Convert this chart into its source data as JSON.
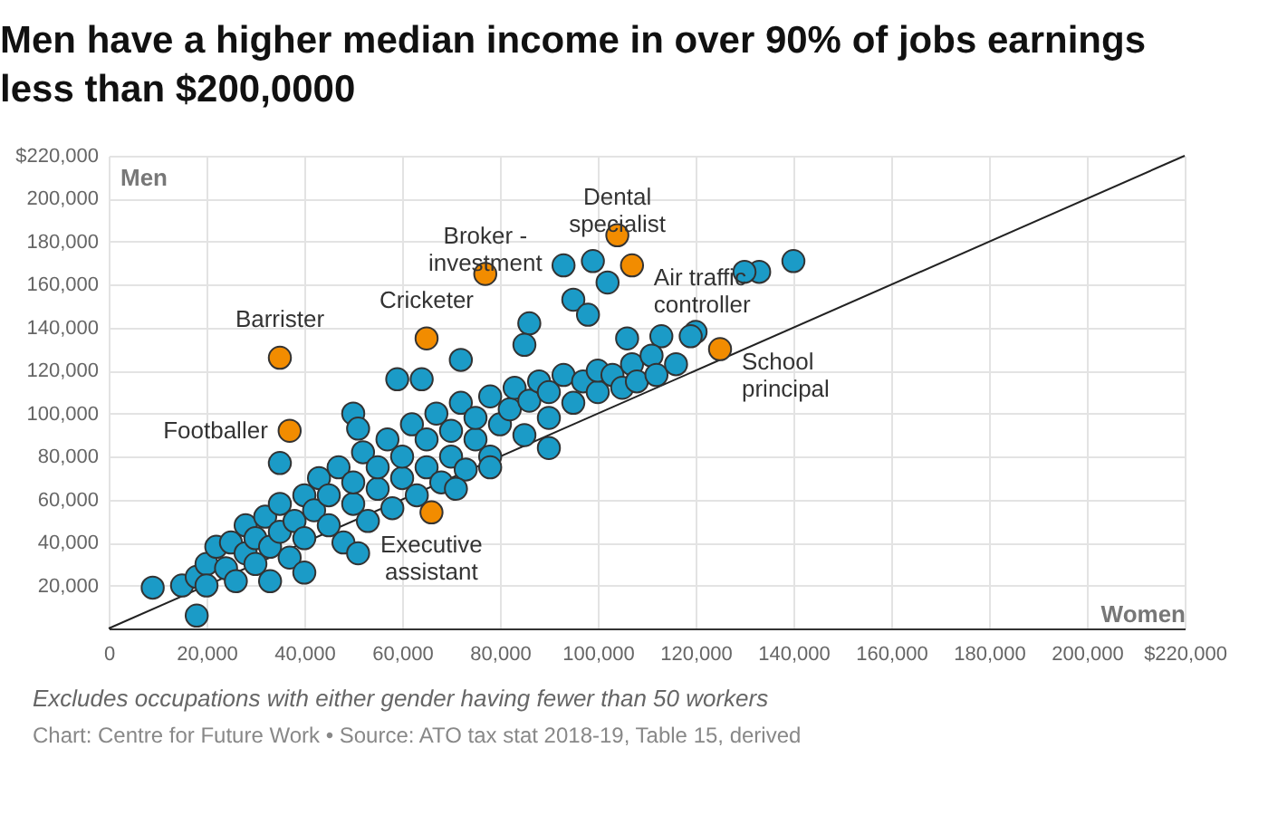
{
  "chart_data": {
    "type": "scatter",
    "title": "Men have a higher median income in over 90% of jobs earnings less than $200,0000",
    "xlabel": "Women",
    "ylabel": "Men",
    "xlim": [
      0,
      220000
    ],
    "ylim": [
      0,
      220000
    ],
    "xticks": [
      0,
      {
        "value": 20000,
        "label": "20,000"
      },
      {
        "value": 40000,
        "label": "40,000"
      },
      {
        "value": 60000,
        "label": "60,000"
      },
      {
        "value": 80000,
        "label": "80,000"
      },
      {
        "value": 100000,
        "label": "100,000"
      },
      {
        "value": 120000,
        "label": "120,000"
      },
      {
        "value": 140000,
        "label": "140,000"
      },
      {
        "value": 160000,
        "label": "160,000"
      },
      {
        "value": 180000,
        "label": "180,000"
      },
      {
        "value": 200000,
        "label": "200,000"
      },
      {
        "value": 220000,
        "label": "$220,000"
      }
    ],
    "yticks": [
      {
        "value": 20000,
        "label": "20,000"
      },
      {
        "value": 40000,
        "label": "40,000"
      },
      {
        "value": 60000,
        "label": "60,000"
      },
      {
        "value": 80000,
        "label": "80,000"
      },
      {
        "value": 100000,
        "label": "100,000"
      },
      {
        "value": 120000,
        "label": "120,000"
      },
      {
        "value": 140000,
        "label": "140,000"
      },
      {
        "value": 160000,
        "label": "160,000"
      },
      {
        "value": 180000,
        "label": "180,000"
      },
      {
        "value": 200000,
        "label": "200,000"
      },
      {
        "value": 220000,
        "label": "$220,000"
      }
    ],
    "grid": true,
    "marker": "circle",
    "series": [
      {
        "type": "line",
        "color": "#222222",
        "marker": "none",
        "x": [
          0,
          220000
        ],
        "values": [
          0,
          220000
        ]
      },
      {
        "type": "scatter",
        "color": "#1b9bc7",
        "x": [
          15000,
          18000,
          20000,
          20000,
          22000,
          24000,
          25000,
          26000,
          28000,
          28000,
          30000,
          30000,
          32000,
          33000,
          35000,
          35000,
          37000,
          38000,
          40000,
          40000,
          42000,
          43000,
          45000,
          45000,
          47000,
          48000,
          50000,
          50000,
          52000,
          53000,
          55000,
          55000,
          57000,
          58000,
          60000,
          60000,
          62000,
          63000,
          65000,
          65000,
          67000,
          68000,
          70000,
          70000,
          72000,
          73000,
          75000,
          75000,
          78000,
          78000,
          80000,
          82000,
          83000,
          85000,
          86000,
          88000,
          90000,
          90000,
          93000,
          95000,
          97000,
          100000,
          100000,
          103000,
          105000,
          107000,
          108000,
          93000,
          99000,
          102000,
          95000,
          98000,
          86000,
          85000,
          72000,
          59000,
          64000,
          50000,
          51000,
          35000,
          106000,
          113000,
          111000,
          112000,
          90000,
          9000,
          18000,
          51000,
          40000,
          33000,
          71000,
          78000,
          133000,
          140000,
          130000,
          120000,
          119000,
          116000
        ],
        "values": [
          20000,
          24000,
          30000,
          20000,
          38000,
          28000,
          40000,
          22000,
          35000,
          48000,
          30000,
          42000,
          52000,
          38000,
          45000,
          58000,
          33000,
          50000,
          62000,
          42000,
          55000,
          70000,
          48000,
          62000,
          75000,
          40000,
          58000,
          68000,
          82000,
          50000,
          65000,
          75000,
          88000,
          56000,
          70000,
          80000,
          95000,
          62000,
          75000,
          88000,
          100000,
          68000,
          80000,
          92000,
          105000,
          74000,
          88000,
          98000,
          108000,
          80000,
          95000,
          102000,
          112000,
          90000,
          106000,
          115000,
          98000,
          110000,
          118000,
          105000,
          115000,
          110000,
          120000,
          118000,
          112000,
          123000,
          115000,
          169000,
          171000,
          161000,
          153000,
          146000,
          142000,
          132000,
          125000,
          116000,
          116000,
          100000,
          93000,
          77000,
          135000,
          136000,
          127000,
          118000,
          84000,
          19000,
          6000,
          35000,
          26000,
          22000,
          65000,
          75000,
          166000,
          171000,
          166000,
          138000,
          136000,
          123000
        ]
      },
      {
        "type": "scatter",
        "color": "#f28c00",
        "x": [
          35000,
          37000,
          65000,
          77000,
          104000,
          107000,
          125000,
          66000
        ],
        "values": [
          126000,
          92000,
          135000,
          165000,
          183000,
          169000,
          130000,
          54000
        ]
      }
    ],
    "annotations": [
      {
        "text": "Barrister",
        "x": 35000,
        "y": 126000
      },
      {
        "text": "Footballer",
        "x": 37000,
        "y": 92000
      },
      {
        "text": "Cricketer",
        "x": 65000,
        "y": 135000
      },
      {
        "text": "Broker - investment",
        "x": 77000,
        "y": 165000
      },
      {
        "text": "Dental specialist",
        "x": 104000,
        "y": 183000
      },
      {
        "text": "Air traffic controller",
        "x": 107000,
        "y": 169000
      },
      {
        "text": "School principal",
        "x": 125000,
        "y": 130000
      },
      {
        "text": "Executive assistant",
        "x": 66000,
        "y": 54000
      },
      "Excludes occupations with either gender having fewer than 50 workers",
      "Chart: Centre for Future Work • Source: ATO tax stat 2018-19, Table 15, derived"
    ]
  }
}
